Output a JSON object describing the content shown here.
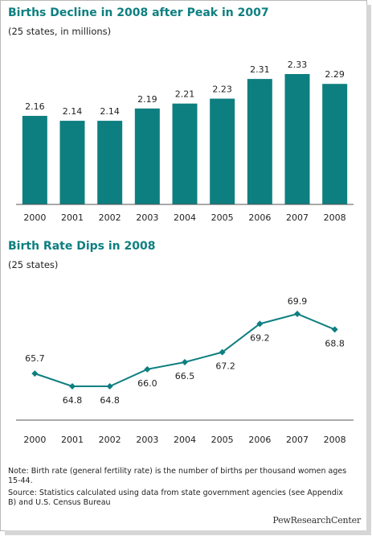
{
  "chart_data": [
    {
      "type": "bar",
      "title": "Births Decline in 2008 after Peak in 2007",
      "subtitle": "(25 states, in millions)",
      "categories": [
        "2000",
        "2001",
        "2002",
        "2003",
        "2004",
        "2005",
        "2006",
        "2007",
        "2008"
      ],
      "values": [
        2.16,
        2.14,
        2.14,
        2.19,
        2.21,
        2.23,
        2.31,
        2.33,
        2.29
      ],
      "value_labels": [
        "2.16",
        "2.14",
        "2.14",
        "2.19",
        "2.21",
        "2.23",
        "2.31",
        "2.33",
        "2.29"
      ],
      "color": "#0e7f80",
      "grid": false
    },
    {
      "type": "line",
      "title": "Birth Rate Dips in 2008",
      "subtitle": "(25 states)",
      "categories": [
        "2000",
        "2001",
        "2002",
        "2003",
        "2004",
        "2005",
        "2006",
        "2007",
        "2008"
      ],
      "values": [
        65.7,
        64.8,
        64.8,
        66.0,
        66.5,
        67.2,
        69.2,
        69.9,
        68.8
      ],
      "value_labels": [
        "65.7",
        "64.8",
        "64.8",
        "66.0",
        "66.5",
        "67.2",
        "69.2",
        "69.9",
        "68.8"
      ],
      "color": "#0e7f80",
      "grid": false
    }
  ],
  "notes": {
    "note": "Note: Birth rate (general fertility rate) is the number of births per thousand women ages 15-44.",
    "source": "Source: Statistics calculated using data from state government agencies (see Appendix B) and U.S. Census Bureau"
  },
  "logo": "PewResearchCenter"
}
